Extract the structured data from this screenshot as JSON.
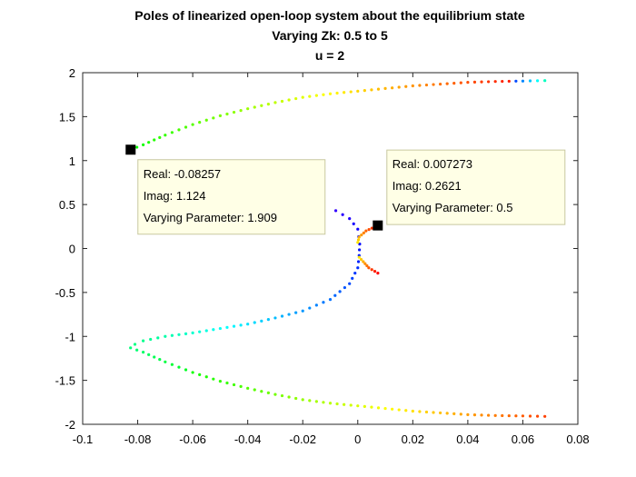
{
  "chart_data": {
    "type": "scatter",
    "title_lines": [
      "Poles of linearized open-loop system about the equilibrium state",
      "Varying Zk: 0.5 to 5",
      "u = 2"
    ],
    "xlabel": "",
    "ylabel": "",
    "xlim": [
      -0.1,
      0.08
    ],
    "ylim": [
      -2,
      2
    ],
    "x_ticks": [
      "-0.1",
      "-0.08",
      "-0.06",
      "-0.04",
      "-0.02",
      "0",
      "0.02",
      "0.04",
      "0.06",
      "0.08"
    ],
    "y_ticks": [
      "2",
      "1.5",
      "1",
      "0.5",
      "0",
      "-0.5",
      "-1",
      "-1.5",
      "-2"
    ],
    "grid": false,
    "parameter_range": [
      0.5,
      5
    ],
    "colormap": [
      "#ff0000",
      "#ffff00",
      "#00ff00",
      "#00ffff",
      "#0000ff",
      "#ff00ff"
    ],
    "branches": [
      {
        "points": [
          [
            0.068,
            1.91
          ],
          [
            0.06,
            1.905
          ],
          [
            0.05,
            1.9
          ],
          [
            0.04,
            1.89
          ],
          [
            0.03,
            1.87
          ],
          [
            0.02,
            1.85
          ],
          [
            0.01,
            1.82
          ],
          [
            0.0,
            1.79
          ],
          [
            -0.01,
            1.76
          ],
          [
            -0.02,
            1.72
          ],
          [
            -0.03,
            1.66
          ],
          [
            -0.04,
            1.59
          ],
          [
            -0.05,
            1.51
          ],
          [
            -0.06,
            1.41
          ],
          [
            -0.07,
            1.29
          ],
          [
            -0.078,
            1.18
          ],
          [
            -0.0826,
            1.124
          ],
          [
            -0.0823,
            1.09
          ]
        ]
      },
      {
        "points": [
          [
            0.068,
            -1.91
          ],
          [
            0.06,
            -1.905
          ],
          [
            0.05,
            -1.9
          ],
          [
            0.04,
            -1.89
          ],
          [
            0.03,
            -1.87
          ],
          [
            0.02,
            -1.85
          ],
          [
            0.01,
            -1.82
          ],
          [
            0.0,
            -1.79
          ],
          [
            -0.01,
            -1.76
          ],
          [
            -0.02,
            -1.72
          ],
          [
            -0.03,
            -1.66
          ],
          [
            -0.04,
            -1.59
          ],
          [
            -0.05,
            -1.51
          ],
          [
            -0.06,
            -1.41
          ],
          [
            -0.07,
            -1.29
          ],
          [
            -0.078,
            -1.18
          ],
          [
            -0.0826,
            -1.13
          ],
          [
            -0.081,
            -1.09
          ],
          [
            -0.078,
            -1.05
          ],
          [
            -0.07,
            -1.0
          ],
          [
            -0.06,
            -0.96
          ],
          [
            -0.05,
            -0.91
          ],
          [
            -0.04,
            -0.86
          ],
          [
            -0.03,
            -0.79
          ],
          [
            -0.02,
            -0.71
          ],
          [
            -0.01,
            -0.58
          ],
          [
            -0.003,
            -0.4
          ],
          [
            0.0,
            -0.22
          ],
          [
            0.0005,
            -0.08
          ],
          [
            0.0007,
            0.05
          ],
          [
            0.0,
            0.22
          ],
          [
            -0.003,
            0.34
          ],
          [
            -0.008,
            0.43
          ]
        ]
      },
      {
        "points": [
          [
            0.0073,
            0.2621
          ],
          [
            0.003,
            0.2
          ],
          [
            0.0005,
            0.13
          ],
          [
            0.0,
            0.07
          ]
        ]
      },
      {
        "points": [
          [
            0.0073,
            -0.28
          ],
          [
            0.004,
            -0.22
          ],
          [
            0.002,
            -0.15
          ],
          [
            0.0005,
            -0.1
          ]
        ]
      }
    ],
    "data_tips": [
      {
        "x": -0.08257,
        "y": 1.124,
        "lines": [
          "Real: -0.08257",
          "Imag: 1.124",
          "Varying Parameter: 1.909"
        ]
      },
      {
        "x": 0.007273,
        "y": 0.2621,
        "lines": [
          "Real: 0.007273",
          "Imag: 0.2621",
          "Varying Parameter: 0.5"
        ]
      }
    ]
  }
}
